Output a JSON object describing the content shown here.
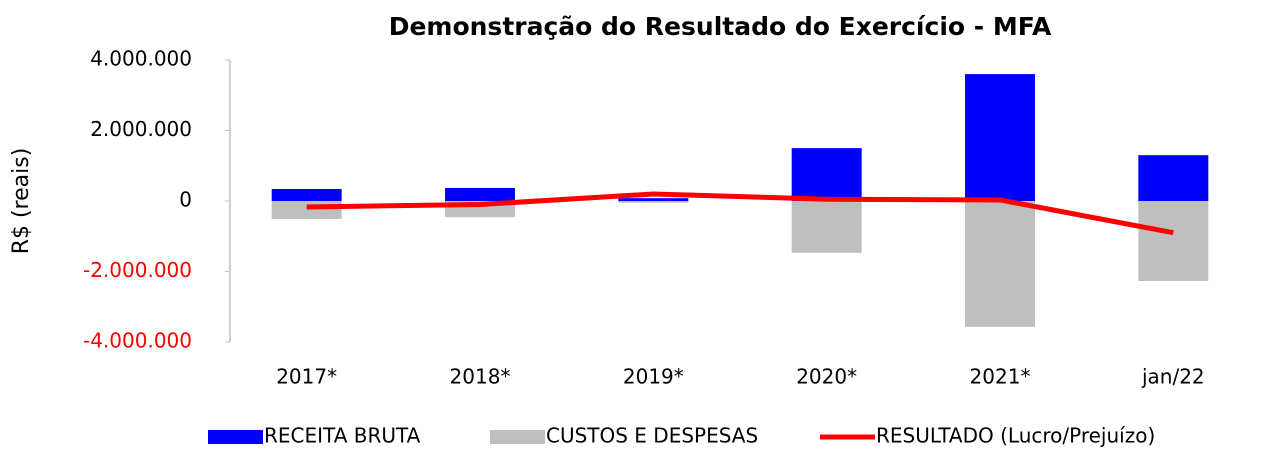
{
  "chart_data": {
    "type": "bar_line",
    "title": "Demonstração do Resultado do Exercício - MFA",
    "y_label": "R$ (reais)",
    "categories": [
      "2017*",
      "2018*",
      "2019*",
      "2020*",
      "2021*",
      "jan/22"
    ],
    "series": [
      {
        "name": "RECEITA BRUTA",
        "color": "#0000ff",
        "type": "bar",
        "values": [
          340000,
          370000,
          80000,
          1500000,
          3600000,
          1300000
        ]
      },
      {
        "name": "CUSTOS E DESPESAS",
        "color": "#bfbfbf",
        "type": "bar",
        "values": [
          -510000,
          -460000,
          -50000,
          -1470000,
          -3570000,
          -2270000
        ]
      },
      {
        "name": "RESULTADO (Lucro/Prejuízo)",
        "color": "#ff0000",
        "type": "line",
        "values": [
          -170000,
          -100000,
          200000,
          50000,
          30000,
          -900000
        ]
      }
    ],
    "ylim": [
      -4000000,
      4000000
    ],
    "yticks": [
      {
        "value": 4000000,
        "label": "4.000.000"
      },
      {
        "value": 2000000,
        "label": "2.000.000"
      },
      0,
      {
        "value": -2000000,
        "label": "-2.000.000"
      },
      {
        "value": -4000000,
        "label": "-4.000.000"
      }
    ],
    "negative_tick_color": "#ff0000",
    "legend": "bottom"
  }
}
